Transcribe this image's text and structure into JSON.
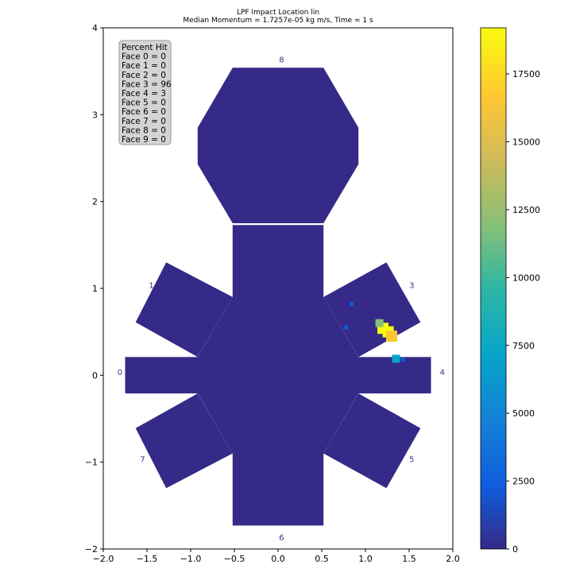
{
  "chart_data": {
    "type": "heatmap",
    "title": "LPF Impact Location lin",
    "subtitle": "Median Momentum = 1.7257e-05 kg m/s, Time = 1 s",
    "xlim": [
      -2.0,
      2.0
    ],
    "ylim": [
      -2,
      4
    ],
    "x_ticks": [
      "−2.0",
      "−1.5",
      "−1.0",
      "−0.5",
      "0.0",
      "0.5",
      "1.0",
      "1.5",
      "2.0"
    ],
    "x_tick_values": [
      -2.0,
      -1.5,
      -1.0,
      -0.5,
      0.0,
      0.5,
      1.0,
      1.5,
      2.0
    ],
    "y_ticks": [
      "−2",
      "−1",
      "0",
      "1",
      "2",
      "3",
      "4"
    ],
    "y_tick_values": [
      -2,
      -1,
      0,
      1,
      2,
      3,
      4
    ],
    "background_color": "#352a87",
    "hot_color": "#f9fb0e",
    "colorbar": {
      "min": 0,
      "max": 19200,
      "ticks": [
        "0",
        "2500",
        "5000",
        "7500",
        "10000",
        "12500",
        "15000",
        "17500"
      ],
      "tick_values": [
        0,
        2500,
        5000,
        7500,
        10000,
        12500,
        15000,
        17500
      ],
      "colormap": "parula"
    },
    "legend": {
      "placement": "top-left",
      "title": "Percent Hit",
      "entries": [
        "Face 0 = 0",
        "Face 1 = 0",
        "Face 2 = 0",
        "Face 3 = 96",
        "Face 4 = 3",
        "Face 5 = 0",
        "Face 6 = 0",
        "Face 7 = 0",
        "Face 8 = 0",
        "Face 9 = 0"
      ]
    },
    "face_labels": [
      {
        "text": "0",
        "x": -1.81,
        "y": 0.03
      },
      {
        "text": "1",
        "x": -1.45,
        "y": 1.03
      },
      {
        "text": "3",
        "x": 1.53,
        "y": 1.03
      },
      {
        "text": "4",
        "x": 1.88,
        "y": 0.03
      },
      {
        "text": "5",
        "x": 1.53,
        "y": -0.97
      },
      {
        "text": "6",
        "x": 0.04,
        "y": -1.87
      },
      {
        "text": "7",
        "x": -1.55,
        "y": -0.97
      },
      {
        "text": "8",
        "x": 0.04,
        "y": 3.63
      }
    ],
    "hotspots": [
      {
        "x": 1.2,
        "y": 0.54,
        "value": 19000
      },
      {
        "x": 1.26,
        "y": 0.5,
        "value": 18500
      },
      {
        "x": 1.3,
        "y": 0.45,
        "value": 17000
      },
      {
        "x": 1.16,
        "y": 0.6,
        "value": 12000
      },
      {
        "x": 1.35,
        "y": 0.19,
        "value": 6000
      },
      {
        "x": 1.43,
        "y": 0.18,
        "value": 3000
      },
      {
        "x": 0.84,
        "y": 0.82,
        "value": 2500
      },
      {
        "x": 0.78,
        "y": 0.55,
        "value": 2000
      }
    ]
  }
}
